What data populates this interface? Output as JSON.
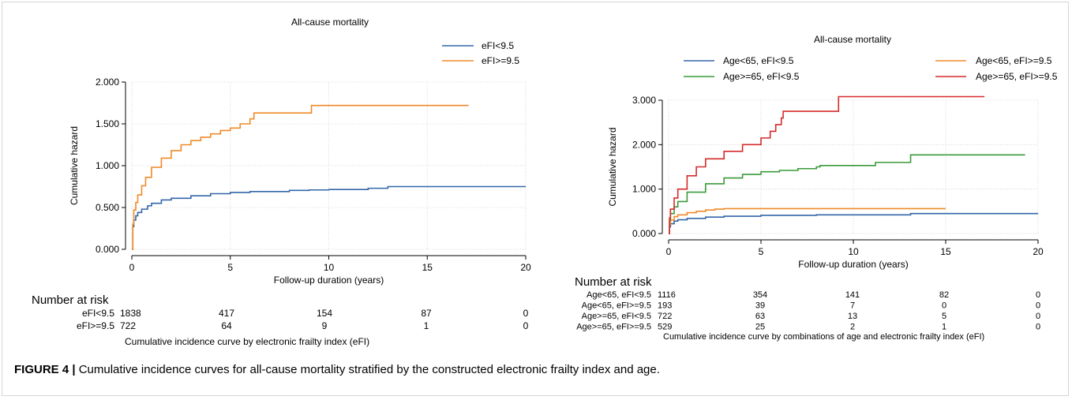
{
  "caption": {
    "label": "FIGURE 4 |",
    "text": " Cumulative incidence curves for all-cause mortality stratified by the constructed electronic frailty index and age."
  },
  "chart_data": [
    {
      "type": "line",
      "title": "All-cause mortality",
      "xlabel": "Follow-up duration (years)",
      "ylabel": "Cumulative hazard",
      "xlim": [
        0,
        20
      ],
      "ylim": [
        0,
        2
      ],
      "xticks": [
        0,
        5,
        10,
        15,
        20
      ],
      "xtick_labels": [
        "0",
        "5",
        "10",
        "15",
        "20"
      ],
      "yticks": [
        0,
        0.5,
        1,
        1.5,
        2
      ],
      "ytick_labels": [
        "0.000",
        "0.500",
        "1.000",
        "1.500",
        "2.000"
      ],
      "grid": true,
      "legend_position": "top-right",
      "series": [
        {
          "name": "eFI<9.5",
          "color": "#3366a8",
          "x": [
            0,
            0.05,
            0.1,
            0.2,
            0.3,
            0.5,
            0.8,
            1.0,
            1.5,
            2.0,
            3.0,
            4.0,
            5.0,
            6.0,
            8.0,
            9.0,
            10.0,
            12.0,
            13.0,
            15.0,
            20.0
          ],
          "y": [
            0,
            0.27,
            0.35,
            0.4,
            0.44,
            0.48,
            0.52,
            0.55,
            0.59,
            0.61,
            0.64,
            0.665,
            0.68,
            0.69,
            0.705,
            0.71,
            0.715,
            0.73,
            0.75,
            0.75,
            0.75
          ]
        },
        {
          "name": "eFI>=9.5",
          "color": "#f08a28",
          "x": [
            0,
            0.05,
            0.1,
            0.2,
            0.3,
            0.5,
            0.7,
            1.0,
            1.5,
            2.0,
            2.5,
            3.0,
            3.5,
            4.0,
            4.5,
            5.0,
            5.5,
            6.0,
            6.2,
            9.1,
            9.12,
            17.1
          ],
          "y": [
            0,
            0.3,
            0.47,
            0.56,
            0.65,
            0.76,
            0.86,
            0.98,
            1.09,
            1.18,
            1.25,
            1.3,
            1.34,
            1.38,
            1.42,
            1.45,
            1.5,
            1.56,
            1.63,
            1.63,
            1.72,
            1.72
          ]
        }
      ],
      "risk_table": {
        "heading": "Number at risk",
        "rows": [
          {
            "label": "eFI<9.5",
            "values": [
              "1838",
              "417",
              "154",
              "87",
              "0"
            ]
          },
          {
            "label": "eFI>=9.5",
            "values": [
              "722",
              "64",
              "9",
              "1",
              "0"
            ]
          }
        ],
        "note": "Cumulative incidence curve by electronic frailty index (eFI)"
      }
    },
    {
      "type": "line",
      "title": "All-cause mortality",
      "xlabel": "Follow-up duration (years)",
      "ylabel": "Cumulative hazard",
      "xlim": [
        0,
        20
      ],
      "ylim": [
        0,
        3
      ],
      "xticks": [
        0,
        5,
        10,
        15,
        20
      ],
      "xtick_labels": [
        "0",
        "5",
        "10",
        "15",
        "20"
      ],
      "yticks": [
        0,
        1,
        2,
        3
      ],
      "ytick_labels": [
        "0.000",
        "1.000",
        "2.000",
        "3.000"
      ],
      "grid": true,
      "legend_position": "top-right",
      "series": [
        {
          "name": "Age<65, eFI<9.5",
          "color": "#3366a8",
          "x": [
            0,
            0.05,
            0.1,
            0.3,
            0.5,
            1.0,
            2.0,
            3.0,
            5.0,
            8.0,
            10.0,
            13.0,
            13.1,
            20.0
          ],
          "y": [
            0,
            0.15,
            0.22,
            0.28,
            0.31,
            0.34,
            0.37,
            0.39,
            0.41,
            0.42,
            0.42,
            0.42,
            0.45,
            0.45
          ]
        },
        {
          "name": "Age<65, eFI>=9.5",
          "color": "#f08a28",
          "x": [
            0,
            0.05,
            0.1,
            0.3,
            0.5,
            1.0,
            1.5,
            2.0,
            2.5,
            3.0,
            15.0
          ],
          "y": [
            0,
            0.2,
            0.3,
            0.38,
            0.42,
            0.47,
            0.5,
            0.53,
            0.55,
            0.56,
            0.56
          ]
        },
        {
          "name": "Age>=65, eFI<9.5",
          "color": "#3a9a3a",
          "x": [
            0,
            0.05,
            0.1,
            0.3,
            0.5,
            1.0,
            2.0,
            3.0,
            4.0,
            5.0,
            6.0,
            7.0,
            8.0,
            8.2,
            10.0,
            11.0,
            11.2,
            13.0,
            13.1,
            19.3
          ],
          "y": [
            0,
            0.3,
            0.45,
            0.6,
            0.72,
            0.93,
            1.12,
            1.25,
            1.33,
            1.39,
            1.42,
            1.46,
            1.5,
            1.53,
            1.53,
            1.53,
            1.6,
            1.6,
            1.77,
            1.77
          ]
        },
        {
          "name": "Age>=65, eFI>=9.5",
          "color": "#d62a2a",
          "x": [
            0,
            0.05,
            0.1,
            0.3,
            0.5,
            1.0,
            1.5,
            2.0,
            3.0,
            4.0,
            5.0,
            5.5,
            5.8,
            6.1,
            6.2,
            9.1,
            9.2,
            17.1
          ],
          "y": [
            0,
            0.35,
            0.55,
            0.8,
            1.0,
            1.3,
            1.5,
            1.68,
            1.85,
            2.0,
            2.15,
            2.3,
            2.45,
            2.6,
            2.75,
            2.75,
            3.08,
            3.08
          ]
        }
      ],
      "risk_table": {
        "heading": "Number at risk",
        "rows": [
          {
            "label": "Age<65, eFI<9.5",
            "values": [
              "1116",
              "354",
              "141",
              "82",
              "0"
            ]
          },
          {
            "label": "Age<65, eFI>=9.5",
            "values": [
              "193",
              "39",
              "7",
              "0",
              "0"
            ]
          },
          {
            "label": "Age>=65, eFI<9.5",
            "values": [
              "722",
              "63",
              "13",
              "5",
              "0"
            ]
          },
          {
            "label": "Age>=65, eFI>=9.5",
            "values": [
              "529",
              "25",
              "2",
              "1",
              "0"
            ]
          }
        ],
        "note": "Cumulative incidence curve by combinations of age and electronic frailty index (eFI)"
      }
    }
  ]
}
